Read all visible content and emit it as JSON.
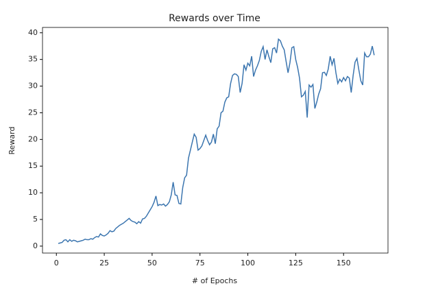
{
  "chart_data": {
    "type": "line",
    "title": "Rewards over Time",
    "x_label": "# of Epochs",
    "y_label": "Reward",
    "x": [
      1,
      2,
      3,
      4,
      5,
      6,
      7,
      8,
      9,
      10,
      11,
      12,
      13,
      14,
      15,
      16,
      17,
      18,
      19,
      20,
      21,
      22,
      23,
      24,
      25,
      26,
      27,
      28,
      29,
      30,
      31,
      32,
      33,
      34,
      35,
      36,
      37,
      38,
      39,
      40,
      41,
      42,
      43,
      44,
      45,
      46,
      47,
      48,
      49,
      50,
      51,
      52,
      53,
      54,
      55,
      56,
      57,
      58,
      59,
      60,
      61,
      62,
      63,
      64,
      65,
      66,
      67,
      68,
      69,
      70,
      71,
      72,
      73,
      74,
      75,
      76,
      77,
      78,
      79,
      80,
      81,
      82,
      83,
      84,
      85,
      86,
      87,
      88,
      89,
      90,
      91,
      92,
      93,
      94,
      95,
      96,
      97,
      98,
      99,
      100,
      101,
      102,
      103,
      104,
      105,
      106,
      107,
      108,
      109,
      110,
      111,
      112,
      113,
      114,
      115,
      116,
      117,
      118,
      119,
      120,
      121,
      122,
      123,
      124,
      125,
      126,
      127,
      128,
      129,
      130,
      131,
      132,
      133,
      134,
      135,
      136,
      137,
      138,
      139,
      140,
      141,
      142,
      143,
      144,
      145,
      146,
      147,
      148,
      149,
      150,
      151,
      152,
      153,
      154,
      155,
      156,
      157,
      158,
      159,
      160,
      161,
      162,
      163,
      164,
      165,
      166
    ],
    "series": [
      {
        "name": "Reward",
        "color": "#3b75af",
        "values": [
          0.5,
          0.6,
          0.7,
          1.1,
          1.2,
          0.8,
          1.2,
          0.9,
          1.1,
          1.0,
          0.8,
          0.9,
          1.0,
          1.1,
          1.3,
          1.2,
          1.2,
          1.4,
          1.3,
          1.6,
          1.8,
          1.7,
          2.3,
          2.0,
          1.9,
          2.1,
          2.4,
          2.9,
          2.7,
          2.8,
          3.3,
          3.6,
          3.9,
          4.1,
          4.3,
          4.6,
          4.9,
          5.2,
          4.8,
          4.6,
          4.5,
          4.2,
          4.6,
          4.3,
          5.1,
          5.2,
          5.6,
          6.2,
          6.8,
          7.4,
          8.2,
          9.4,
          7.6,
          7.8,
          7.7,
          7.9,
          7.5,
          7.8,
          8.3,
          9.6,
          12.0,
          9.6,
          9.5,
          8.0,
          7.9,
          11.0,
          12.8,
          13.3,
          16.5,
          18.0,
          19.5,
          21.0,
          20.4,
          18.0,
          18.3,
          18.8,
          19.8,
          20.8,
          19.8,
          19.0,
          19.5,
          21.0,
          19.2,
          22.0,
          22.5,
          25.0,
          25.3,
          27.0,
          27.8,
          28.0,
          30.5,
          32.0,
          32.3,
          32.2,
          31.8,
          28.8,
          30.5,
          34.0,
          33.0,
          34.3,
          33.8,
          35.6,
          31.8,
          33.0,
          33.8,
          34.8,
          36.5,
          37.4,
          35.0,
          36.8,
          35.5,
          34.4,
          37.0,
          37.2,
          36.2,
          38.8,
          38.5,
          37.5,
          36.8,
          34.6,
          32.5,
          34.4,
          37.2,
          37.4,
          35.0,
          33.5,
          31.5,
          28.0,
          28.3,
          29.0,
          24.1,
          30.2,
          29.8,
          30.3,
          25.8,
          27.0,
          28.5,
          29.5,
          32.5,
          32.6,
          32.0,
          33.2,
          35.6,
          34.0,
          35.2,
          32.5,
          30.5,
          31.3,
          30.8,
          31.6,
          31.0,
          31.8,
          31.5,
          28.8,
          32.0,
          34.5,
          35.2,
          33.0,
          31.0,
          30.2,
          36.2,
          35.5,
          35.5,
          36.0,
          37.5,
          35.8
        ]
      }
    ],
    "xlim": [
      -7.25,
      173.2
    ],
    "ylim": [
      -1.3,
      41.0
    ],
    "xticks": [
      0,
      25,
      50,
      75,
      100,
      125,
      150
    ],
    "yticks": [
      0,
      5,
      10,
      15,
      20,
      25,
      30,
      35,
      40
    ]
  }
}
